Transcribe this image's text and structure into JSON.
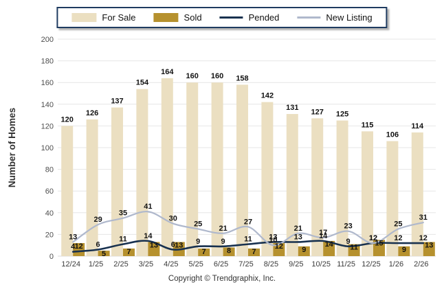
{
  "legend": {
    "items": [
      {
        "label": "For Sale",
        "swatch": "bar",
        "color": "#EBDFC1"
      },
      {
        "label": "Sold",
        "swatch": "bar",
        "color": "#B6912E"
      },
      {
        "label": "Pended",
        "swatch": "line",
        "color": "#18314F"
      },
      {
        "label": "New Listing",
        "swatch": "line",
        "color": "#AFB8CC"
      }
    ]
  },
  "footer": {
    "text": "Copyright © Trendgraphix, Inc."
  },
  "chart_data": {
    "type": "combo",
    "categories": [
      "12/24",
      "1/25",
      "2/25",
      "3/25",
      "4/25",
      "5/25",
      "6/25",
      "7/25",
      "8/25",
      "9/25",
      "10/25",
      "11/25",
      "12/25",
      "1/26",
      "2/26"
    ],
    "series": [
      {
        "name": "For Sale",
        "type": "bar",
        "color": "#EBDFC1",
        "values": [
          120,
          126,
          137,
          154,
          164,
          160,
          160,
          158,
          142,
          131,
          127,
          125,
          115,
          106,
          114
        ]
      },
      {
        "name": "Sold",
        "type": "bar",
        "color": "#B6912E",
        "values": [
          12,
          5,
          7,
          13,
          13,
          7,
          8,
          7,
          12,
          9,
          14,
          11,
          15,
          9,
          13
        ]
      },
      {
        "name": "Pended",
        "type": "line",
        "color": "#18314F",
        "values": [
          4,
          6,
          11,
          14,
          6,
          9,
          9,
          11,
          13,
          13,
          14,
          9,
          12,
          12,
          12
        ]
      },
      {
        "name": "New Listing",
        "type": "line",
        "color": "#AFB8CC",
        "values": [
          13,
          29,
          35,
          41,
          30,
          25,
          21,
          27,
          10,
          21,
          17,
          23,
          12,
          25,
          31
        ]
      }
    ],
    "title": "",
    "xlabel": "",
    "ylabel": "Number of Homes",
    "ylim": [
      0,
      200
    ],
    "yticks": [
      0,
      20,
      40,
      60,
      80,
      100,
      120,
      140,
      160,
      180,
      200
    ],
    "grid": true,
    "legend_position": "top"
  }
}
